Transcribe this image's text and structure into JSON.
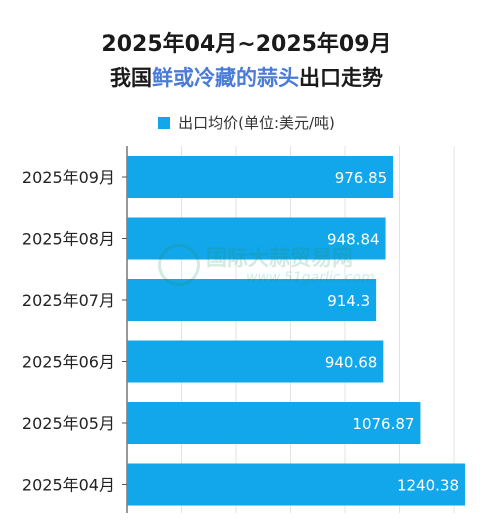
{
  "header": {
    "title_line1": "2025年04月~2025年09月",
    "title_line2_prefix": "我国",
    "title_line2_highlight": "鲜或冷藏的蒜头",
    "title_line2_suffix": "出口走势"
  },
  "legend": {
    "label": "出口均价(单位:美元/吨)",
    "color": "#12a7ea"
  },
  "watermark": {
    "main": "国际大蒜贸易网",
    "sub": "www.51garlic.com"
  },
  "chart_data": {
    "type": "bar",
    "orientation": "horizontal",
    "categories": [
      "2025年09月",
      "2025年08月",
      "2025年07月",
      "2025年06月",
      "2025年05月",
      "2025年04月"
    ],
    "series": [
      {
        "name": "出口均价(单位:美元/吨)",
        "values": [
          976.85,
          948.84,
          914.3,
          940.68,
          1076.87,
          1240.38
        ],
        "color": "#12a7ea"
      }
    ],
    "value_labels": [
      "976.85",
      "948.84",
      "914.3",
      "940.68",
      "1076.87",
      "1240.38"
    ],
    "xlim": [
      0,
      1300
    ],
    "grid": true,
    "legend_position": "top"
  }
}
